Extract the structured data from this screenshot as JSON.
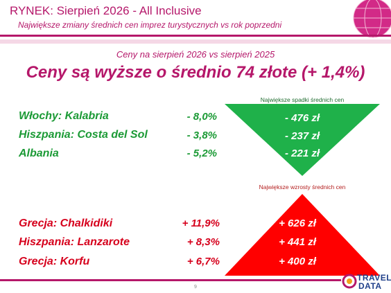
{
  "header": {
    "title": "RYNEK: Sierpień 2026 - All Inclusive",
    "subtitle": "Największe zmiany średnich cen imprez turystycznych vs rok poprzedni"
  },
  "comparison_label": "Ceny na sierpień 2026 vs sierpień 2025",
  "headline": "Ceny są wyższe o średnio 74 złote (+ 1,4%)",
  "decreases": {
    "caption": "Największe spadki średnich cen",
    "rows": [
      {
        "destination": "Włochy: Kalabria",
        "percent": "- 8,0%",
        "value": "- 476 zł"
      },
      {
        "destination": "Hiszpania: Costa del Sol",
        "percent": "- 3,8%",
        "value": "- 237 zł"
      },
      {
        "destination": "Albania",
        "percent": "- 5,2%",
        "value": "- 221 zł"
      }
    ]
  },
  "increases": {
    "caption": "Największe wzrosty średnich cen",
    "rows": [
      {
        "destination": "Grecja: Chalkidiki",
        "percent": "+ 11,9%",
        "value": "+ 626 zł"
      },
      {
        "destination": "Hiszpania: Lanzarote",
        "percent": "+ 8,3%",
        "value": "+ 441 zł"
      },
      {
        "destination": "Grecja: Korfu",
        "percent": "+ 6,7%",
        "value": "+ 400 zł"
      }
    ]
  },
  "page_number": "9",
  "logo": {
    "line1": "TRAVEL",
    "line2": "DATA"
  },
  "colors": {
    "accent": "#b5176a",
    "green": "#1b9a35",
    "red": "#d6001c",
    "green_shape": "#1fb14a",
    "red_shape": "#ff0000"
  }
}
